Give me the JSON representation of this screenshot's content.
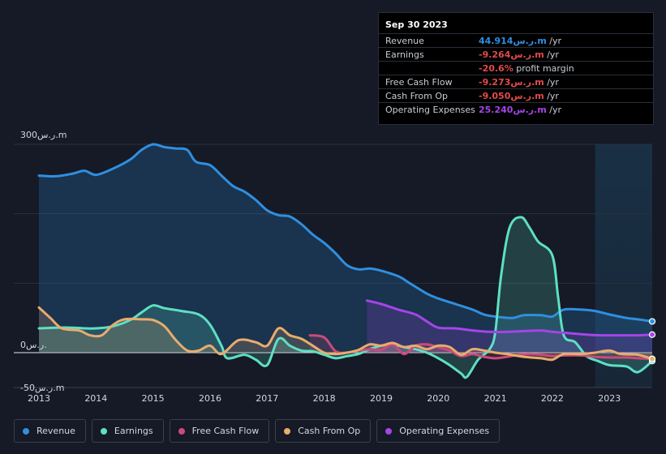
{
  "chart_data": {
    "type": "area",
    "title": "",
    "xlabel": "",
    "ylabel": "",
    "ylim": [
      -50,
      300
    ],
    "y_ticks": [
      {
        "value": 300,
        "label": "300ر.س.m"
      },
      {
        "value": 0,
        "label": "0ر.س."
      },
      {
        "value": -50,
        "label": "-50ر.س.m"
      }
    ],
    "x_ticks": [
      "2013",
      "2014",
      "2015",
      "2016",
      "2017",
      "2018",
      "2019",
      "2020",
      "2021",
      "2022",
      "2023"
    ],
    "x_range": [
      2012.6,
      2023.75
    ],
    "forecast_start": 2022.75,
    "series": [
      {
        "name": "Revenue",
        "color": "#2f8fe0",
        "points": [
          [
            2013.0,
            255
          ],
          [
            2013.3,
            254
          ],
          [
            2013.6,
            258
          ],
          [
            2013.8,
            262
          ],
          [
            2014.0,
            256
          ],
          [
            2014.3,
            265
          ],
          [
            2014.6,
            278
          ],
          [
            2014.8,
            292
          ],
          [
            2015.0,
            300
          ],
          [
            2015.2,
            296
          ],
          [
            2015.4,
            294
          ],
          [
            2015.6,
            292
          ],
          [
            2015.75,
            275
          ],
          [
            2016.0,
            270
          ],
          [
            2016.2,
            255
          ],
          [
            2016.4,
            240
          ],
          [
            2016.6,
            232
          ],
          [
            2016.8,
            220
          ],
          [
            2017.0,
            205
          ],
          [
            2017.2,
            198
          ],
          [
            2017.4,
            196
          ],
          [
            2017.6,
            185
          ],
          [
            2017.8,
            170
          ],
          [
            2018.0,
            158
          ],
          [
            2018.2,
            143
          ],
          [
            2018.4,
            126
          ],
          [
            2018.6,
            120
          ],
          [
            2018.8,
            121
          ],
          [
            2019.0,
            118
          ],
          [
            2019.3,
            110
          ],
          [
            2019.5,
            100
          ],
          [
            2019.8,
            85
          ],
          [
            2020.0,
            78
          ],
          [
            2020.3,
            70
          ],
          [
            2020.6,
            62
          ],
          [
            2020.8,
            55
          ],
          [
            2021.0,
            52
          ],
          [
            2021.3,
            50
          ],
          [
            2021.5,
            54
          ],
          [
            2021.8,
            54
          ],
          [
            2022.0,
            52
          ],
          [
            2022.2,
            62
          ],
          [
            2022.5,
            62
          ],
          [
            2022.75,
            60
          ],
          [
            2023.0,
            55
          ],
          [
            2023.3,
            50
          ],
          [
            2023.5,
            48
          ],
          [
            2023.75,
            45
          ]
        ]
      },
      {
        "name": "Earnings",
        "color": "#5de0c3",
        "points": [
          [
            2013.0,
            35
          ],
          [
            2013.3,
            36
          ],
          [
            2013.6,
            36
          ],
          [
            2013.8,
            35
          ],
          [
            2014.0,
            35
          ],
          [
            2014.3,
            38
          ],
          [
            2014.6,
            47
          ],
          [
            2014.8,
            58
          ],
          [
            2015.0,
            68
          ],
          [
            2015.2,
            64
          ],
          [
            2015.5,
            60
          ],
          [
            2015.8,
            55
          ],
          [
            2016.0,
            40
          ],
          [
            2016.2,
            10
          ],
          [
            2016.3,
            -8
          ],
          [
            2016.6,
            -3
          ],
          [
            2016.8,
            -10
          ],
          [
            2017.0,
            -18
          ],
          [
            2017.2,
            20
          ],
          [
            2017.4,
            10
          ],
          [
            2017.6,
            3
          ],
          [
            2017.8,
            2
          ],
          [
            2018.0,
            -3
          ],
          [
            2018.2,
            -8
          ],
          [
            2018.4,
            -5
          ],
          [
            2018.6,
            -2
          ],
          [
            2018.8,
            5
          ],
          [
            2019.0,
            10
          ],
          [
            2019.2,
            12
          ],
          [
            2019.4,
            8
          ],
          [
            2019.6,
            5
          ],
          [
            2019.8,
            0
          ],
          [
            2020.0,
            -8
          ],
          [
            2020.2,
            -18
          ],
          [
            2020.4,
            -30
          ],
          [
            2020.5,
            -35
          ],
          [
            2020.7,
            -10
          ],
          [
            2020.9,
            5
          ],
          [
            2021.0,
            30
          ],
          [
            2021.1,
            110
          ],
          [
            2021.25,
            180
          ],
          [
            2021.45,
            195
          ],
          [
            2021.6,
            180
          ],
          [
            2021.75,
            160
          ],
          [
            2022.0,
            140
          ],
          [
            2022.1,
            80
          ],
          [
            2022.2,
            25
          ],
          [
            2022.4,
            15
          ],
          [
            2022.6,
            -5
          ],
          [
            2022.8,
            -12
          ],
          [
            2023.0,
            -18
          ],
          [
            2023.3,
            -20
          ],
          [
            2023.5,
            -28
          ],
          [
            2023.75,
            -12
          ]
        ]
      },
      {
        "name": "Free Cash Flow",
        "color": "#cc4a7a",
        "points": [
          [
            2017.75,
            25
          ],
          [
            2018.0,
            22
          ],
          [
            2018.2,
            2
          ],
          [
            2018.4,
            0
          ],
          [
            2018.6,
            3
          ],
          [
            2018.8,
            5
          ],
          [
            2019.0,
            4
          ],
          [
            2019.2,
            12
          ],
          [
            2019.4,
            -2
          ],
          [
            2019.6,
            10
          ],
          [
            2019.8,
            12
          ],
          [
            2020.0,
            8
          ],
          [
            2020.2,
            3
          ],
          [
            2020.4,
            -5
          ],
          [
            2020.6,
            -2
          ],
          [
            2020.8,
            -6
          ],
          [
            2021.0,
            -8
          ],
          [
            2021.2,
            -6
          ],
          [
            2021.4,
            -3
          ],
          [
            2021.6,
            -2
          ],
          [
            2021.8,
            -3
          ],
          [
            2022.0,
            -5
          ],
          [
            2022.2,
            -4
          ],
          [
            2022.5,
            -4
          ],
          [
            2022.75,
            -6
          ],
          [
            2023.0,
            -7
          ],
          [
            2023.3,
            -7
          ],
          [
            2023.5,
            -8
          ],
          [
            2023.75,
            -9
          ]
        ]
      },
      {
        "name": "Cash From Op",
        "color": "#e8ac6e",
        "points": [
          [
            2013.0,
            65
          ],
          [
            2013.2,
            50
          ],
          [
            2013.4,
            35
          ],
          [
            2013.7,
            32
          ],
          [
            2013.9,
            25
          ],
          [
            2014.1,
            25
          ],
          [
            2014.3,
            40
          ],
          [
            2014.5,
            48
          ],
          [
            2014.8,
            48
          ],
          [
            2015.0,
            47
          ],
          [
            2015.2,
            38
          ],
          [
            2015.4,
            18
          ],
          [
            2015.6,
            3
          ],
          [
            2015.8,
            3
          ],
          [
            2016.0,
            10
          ],
          [
            2016.2,
            -2
          ],
          [
            2016.5,
            18
          ],
          [
            2016.8,
            15
          ],
          [
            2017.0,
            10
          ],
          [
            2017.2,
            35
          ],
          [
            2017.4,
            25
          ],
          [
            2017.6,
            20
          ],
          [
            2017.8,
            10
          ],
          [
            2018.0,
            0
          ],
          [
            2018.2,
            -2
          ],
          [
            2018.4,
            0
          ],
          [
            2018.6,
            4
          ],
          [
            2018.8,
            12
          ],
          [
            2019.0,
            10
          ],
          [
            2019.2,
            14
          ],
          [
            2019.4,
            8
          ],
          [
            2019.6,
            10
          ],
          [
            2019.8,
            5
          ],
          [
            2020.0,
            10
          ],
          [
            2020.2,
            8
          ],
          [
            2020.4,
            -3
          ],
          [
            2020.6,
            5
          ],
          [
            2020.8,
            3
          ],
          [
            2021.0,
            0
          ],
          [
            2021.2,
            -2
          ],
          [
            2021.5,
            -6
          ],
          [
            2021.8,
            -8
          ],
          [
            2022.0,
            -10
          ],
          [
            2022.2,
            -2
          ],
          [
            2022.5,
            -2
          ],
          [
            2022.75,
            0
          ],
          [
            2023.0,
            3
          ],
          [
            2023.2,
            -2
          ],
          [
            2023.5,
            -3
          ],
          [
            2023.75,
            -9
          ]
        ]
      },
      {
        "name": "Operating Expenses",
        "color": "#a445e8",
        "points": [
          [
            2018.75,
            75
          ],
          [
            2019.0,
            70
          ],
          [
            2019.3,
            62
          ],
          [
            2019.6,
            55
          ],
          [
            2019.8,
            45
          ],
          [
            2020.0,
            36
          ],
          [
            2020.3,
            35
          ],
          [
            2020.6,
            32
          ],
          [
            2020.9,
            30
          ],
          [
            2021.2,
            30
          ],
          [
            2021.5,
            31
          ],
          [
            2021.8,
            32
          ],
          [
            2022.0,
            30
          ],
          [
            2022.3,
            28
          ],
          [
            2022.6,
            26
          ],
          [
            2022.9,
            25
          ],
          [
            2023.2,
            25
          ],
          [
            2023.5,
            25
          ],
          [
            2023.75,
            26
          ]
        ]
      }
    ]
  },
  "tooltip": {
    "date": "Sep 30 2023",
    "rows": [
      {
        "label": "Revenue",
        "value": "44.914ر.س.m",
        "suffix": " /yr",
        "color": "#2f8fe0"
      },
      {
        "label": "Earnings",
        "value": "-9.264ر.س.m",
        "suffix": " /yr",
        "color": "#e24b4b"
      },
      {
        "label": "",
        "value": "-20.6%",
        "suffix": " profit margin",
        "color": "#e24b4b"
      },
      {
        "label": "Free Cash Flow",
        "value": "-9.273ر.س.m",
        "suffix": " /yr",
        "color": "#e24b4b"
      },
      {
        "label": "Cash From Op",
        "value": "-9.050ر.س.m",
        "suffix": " /yr",
        "color": "#e24b4b"
      },
      {
        "label": "Operating Expenses",
        "value": "25.240ر.س.m",
        "suffix": " /yr",
        "color": "#a445e8"
      }
    ]
  },
  "legend": [
    {
      "label": "Revenue",
      "color": "#2f8fe0"
    },
    {
      "label": "Earnings",
      "color": "#5de0c3"
    },
    {
      "label": "Free Cash Flow",
      "color": "#cc4a7a"
    },
    {
      "label": "Cash From Op",
      "color": "#e8ac6e"
    },
    {
      "label": "Operating Expenses",
      "color": "#a445e8"
    }
  ]
}
